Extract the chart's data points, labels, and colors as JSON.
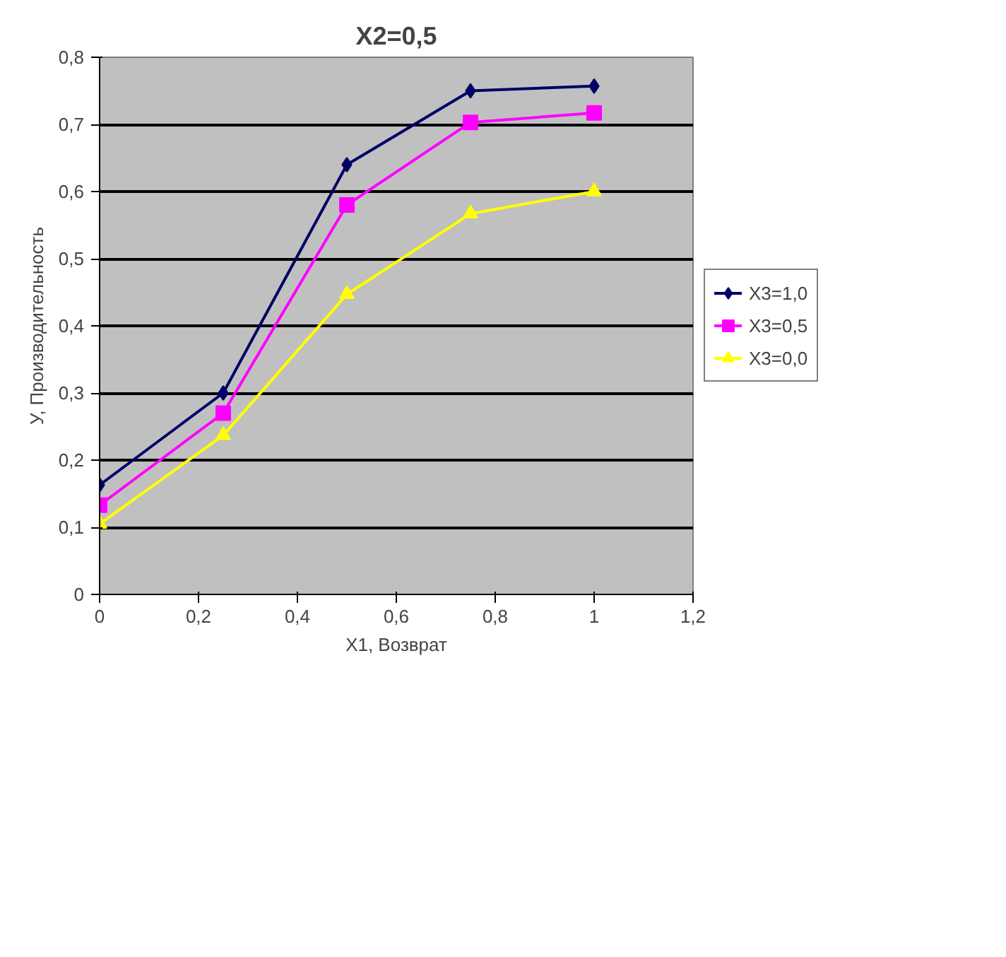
{
  "chart_data": {
    "type": "line",
    "title": "X2=0,5",
    "xlabel": "X1, Возврат",
    "ylabel": "У, Производительность",
    "x": [
      0,
      0.25,
      0.5,
      0.75,
      1
    ],
    "series": [
      {
        "name": "X3=1,0",
        "color": "#000066",
        "marker": "diamond",
        "values": [
          0.163,
          0.3,
          0.64,
          0.75,
          0.757
        ]
      },
      {
        "name": "X3=0,5",
        "color": "#ff00ff",
        "marker": "square",
        "values": [
          0.133,
          0.27,
          0.58,
          0.703,
          0.717
        ]
      },
      {
        "name": "X3=0,0",
        "color": "#ffff00",
        "marker": "triangle",
        "values": [
          0.105,
          0.237,
          0.447,
          0.567,
          0.6
        ]
      }
    ],
    "xlim": [
      0,
      1.2
    ],
    "ylim": [
      0,
      0.8
    ],
    "xticks": [
      0,
      {
        "value": 0.2,
        "label": "0,2"
      },
      {
        "value": 0.4,
        "label": "0,4"
      },
      {
        "value": 0.6,
        "label": "0,6"
      },
      {
        "value": 0.8,
        "label": "0,8"
      },
      1,
      {
        "value": 1.2,
        "label": "1,2"
      }
    ],
    "yticks": [
      0,
      {
        "value": 0.1,
        "label": "0,1"
      },
      {
        "value": 0.2,
        "label": "0,2"
      },
      {
        "value": 0.3,
        "label": "0,3"
      },
      {
        "value": 0.4,
        "label": "0,4"
      },
      {
        "value": 0.5,
        "label": "0,5"
      },
      {
        "value": 0.6,
        "label": "0,6"
      },
      {
        "value": 0.7,
        "label": "0,7"
      },
      {
        "value": 0.8,
        "label": "0,8"
      }
    ],
    "grid": "y",
    "legend": "right",
    "line_style": "solid"
  }
}
